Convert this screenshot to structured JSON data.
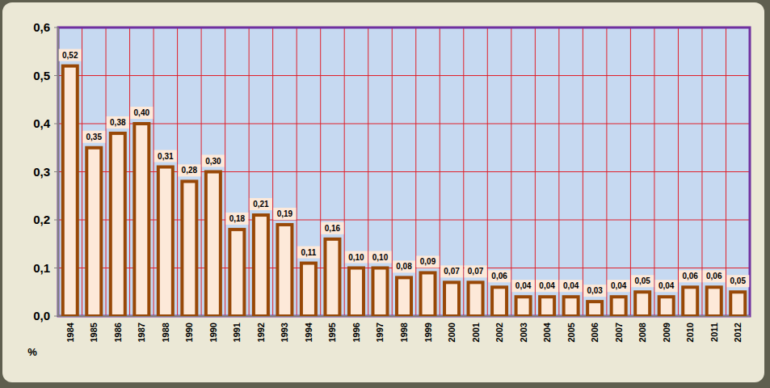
{
  "chart_data": {
    "type": "bar",
    "categories": [
      "1984",
      "1985",
      "1986",
      "1987",
      "1988",
      "1990",
      "1990",
      "1991",
      "1992",
      "1993",
      "1994",
      "1995",
      "1996",
      "1997",
      "1998",
      "1999",
      "2000",
      "2001",
      "2002",
      "2003",
      "2004",
      "2005",
      "2006",
      "2007",
      "2008",
      "2009",
      "2010",
      "2011",
      "2012"
    ],
    "values": [
      0.52,
      0.35,
      0.38,
      0.4,
      0.31,
      0.28,
      0.3,
      0.18,
      0.21,
      0.19,
      0.11,
      0.16,
      0.1,
      0.1,
      0.08,
      0.09,
      0.07,
      0.07,
      0.06,
      0.04,
      0.04,
      0.04,
      0.03,
      0.04,
      0.05,
      0.04,
      0.06,
      0.06,
      0.05
    ],
    "value_labels": [
      "0,52",
      "0,35",
      "0,38",
      "0,40",
      "0,31",
      "0,28",
      "0,30",
      "0,18",
      "0,21",
      "0,19",
      "0,11",
      "0,16",
      "0,10",
      "0,10",
      "0,08",
      "0,09",
      "0,07",
      "0,07",
      "0,06",
      "0,04",
      "0,04",
      "0,04",
      "0,03",
      "0,04",
      "0,05",
      "0,04",
      "0,06",
      "0,06",
      "0,05"
    ],
    "color": "#fde9d9",
    "y_label": "%",
    "ylim": [
      0,
      0.6
    ],
    "yticks": [
      {
        "value": 0,
        "label": "0,0"
      },
      {
        "value": 0.1,
        "label": "0,1"
      },
      {
        "value": 0.2,
        "label": "0,2"
      },
      {
        "value": 0.3,
        "label": "0,3"
      },
      {
        "value": 0.4,
        "label": "0,4"
      },
      {
        "value": 0.5,
        "label": "0,5"
      },
      {
        "value": 0.6,
        "label": "0,6"
      }
    ],
    "grid": true,
    "data_labels": true
  }
}
